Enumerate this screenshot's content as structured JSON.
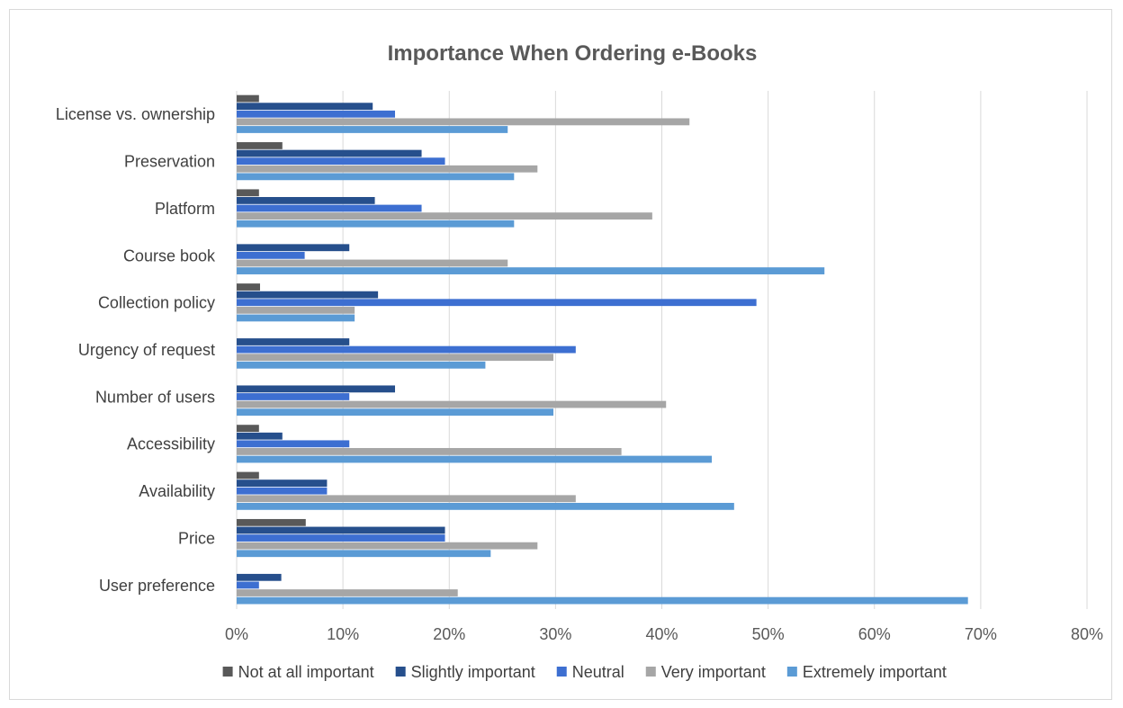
{
  "chart_data": {
    "type": "bar",
    "orientation": "horizontal",
    "title": "Importance When Ordering e-Books",
    "xlabel": "",
    "ylabel": "",
    "xlim": [
      0,
      0.8
    ],
    "x_ticks": [
      "0%",
      "10%",
      "20%",
      "30%",
      "40%",
      "50%",
      "60%",
      "70%",
      "80%"
    ],
    "grid": "vertical",
    "legend_position": "bottom",
    "categories": [
      "License vs. ownership",
      "Preservation",
      "Platform",
      "Course book",
      "Collection policy",
      "Urgency of request",
      "Number of users",
      "Accessibility",
      "Availability",
      "Price",
      "User preference"
    ],
    "series": [
      {
        "name": "Not at all important",
        "color": "#595959",
        "values": [
          0.021,
          0.043,
          0.021,
          0,
          0.022,
          0,
          0,
          0.021,
          0.021,
          0.065,
          0
        ]
      },
      {
        "name": "Slightly important",
        "color": "#264f8c",
        "values": [
          0.128,
          0.174,
          0.13,
          0.106,
          0.133,
          0.106,
          0.149,
          0.043,
          0.085,
          0.196,
          0.042
        ]
      },
      {
        "name": "Neutral",
        "color": "#3d6fd1",
        "values": [
          0.149,
          0.196,
          0.174,
          0.064,
          0.489,
          0.319,
          0.106,
          0.106,
          0.085,
          0.196,
          0.021
        ]
      },
      {
        "name": "Very important",
        "color": "#a6a6a6",
        "values": [
          0.426,
          0.283,
          0.391,
          0.255,
          0.111,
          0.298,
          0.404,
          0.362,
          0.319,
          0.283,
          0.208
        ]
      },
      {
        "name": "Extremely important",
        "color": "#5b9bd5",
        "values": [
          0.255,
          0.261,
          0.261,
          0.553,
          0.111,
          0.234,
          0.298,
          0.447,
          0.468,
          0.239,
          0.688
        ]
      }
    ]
  }
}
